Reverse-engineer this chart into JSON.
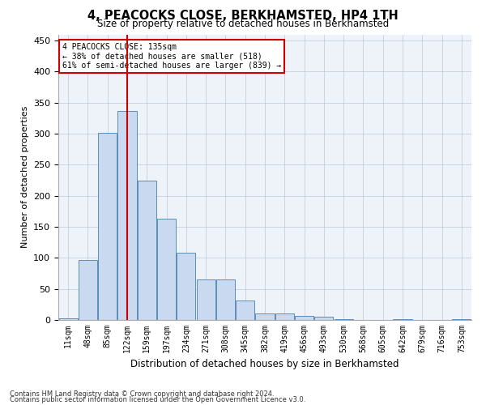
{
  "title": "4, PEACOCKS CLOSE, BERKHAMSTED, HP4 1TH",
  "subtitle": "Size of property relative to detached houses in Berkhamsted",
  "xlabel": "Distribution of detached houses by size in Berkhamsted",
  "ylabel": "Number of detached properties",
  "bin_labels": [
    "11sqm",
    "48sqm",
    "85sqm",
    "122sqm",
    "159sqm",
    "197sqm",
    "234sqm",
    "271sqm",
    "308sqm",
    "345sqm",
    "382sqm",
    "419sqm",
    "456sqm",
    "493sqm",
    "530sqm",
    "568sqm",
    "605sqm",
    "642sqm",
    "679sqm",
    "716sqm",
    "753sqm"
  ],
  "bar_values": [
    3,
    97,
    302,
    337,
    225,
    163,
    108,
    65,
    65,
    31,
    10,
    10,
    7,
    5,
    1,
    0,
    0,
    1,
    0,
    0,
    1
  ],
  "bar_color": "#c9d9f0",
  "bar_edge_color": "#5b8db8",
  "bg_color": "#eef2f9",
  "red_line_x": 3,
  "annotation_text": "4 PEACOCKS CLOSE: 135sqm\n← 38% of detached houses are smaller (518)\n61% of semi-detached houses are larger (839) →",
  "annotation_box_color": "#ffffff",
  "annotation_box_edge": "#cc0000",
  "red_line_color": "#cc0000",
  "footnote1": "Contains HM Land Registry data © Crown copyright and database right 2024.",
  "footnote2": "Contains public sector information licensed under the Open Government Licence v3.0.",
  "ylim": [
    0,
    460
  ],
  "yticks": [
    0,
    50,
    100,
    150,
    200,
    250,
    300,
    350,
    400,
    450
  ]
}
